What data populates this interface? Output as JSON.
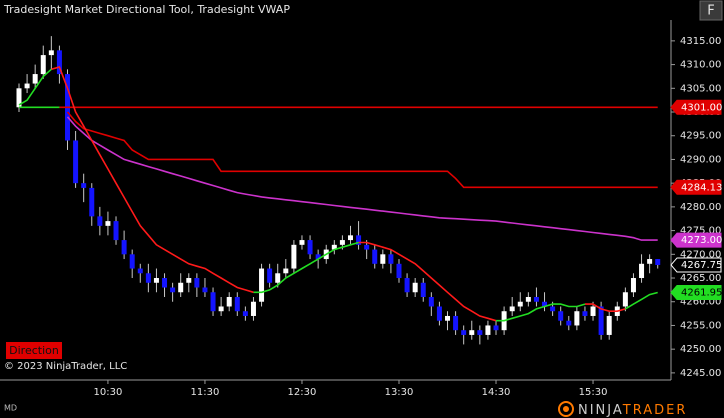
{
  "chart_data": {
    "type": "candlestick",
    "title": "Tradesight Market Directional Tool, Tradesight VWAP",
    "menu_button": "F",
    "direction_button": "Direction",
    "copyright": "© 2023 NinjaTrader, LLC",
    "mode": "MD",
    "logo": [
      "NINJA",
      "TRADER"
    ],
    "up_color": "#ffffff",
    "down_color": "#1414ff",
    "wick_color": "#c8c8c8",
    "x": [
      "09:35",
      "09:40",
      "09:45",
      "09:50",
      "09:55",
      "10:00",
      "10:05",
      "10:10",
      "10:15",
      "10:20",
      "10:25",
      "10:30",
      "10:35",
      "10:40",
      "10:45",
      "10:50",
      "10:55",
      "11:00",
      "11:05",
      "11:10",
      "11:15",
      "11:20",
      "11:25",
      "11:30",
      "11:35",
      "11:40",
      "11:45",
      "11:50",
      "11:55",
      "12:00",
      "12:05",
      "12:10",
      "12:15",
      "12:20",
      "12:25",
      "12:30",
      "12:35",
      "12:40",
      "12:45",
      "12:50",
      "12:55",
      "13:00",
      "13:05",
      "13:10",
      "13:15",
      "13:20",
      "13:25",
      "13:30",
      "13:35",
      "13:40",
      "13:45",
      "13:50",
      "13:55",
      "14:00",
      "14:05",
      "14:10",
      "14:15",
      "14:20",
      "14:25",
      "14:30",
      "14:35",
      "14:40",
      "14:45",
      "14:50",
      "14:55",
      "15:00",
      "15:05",
      "15:10",
      "15:15",
      "15:20",
      "15:25",
      "15:30",
      "15:35",
      "15:40",
      "15:45",
      "15:50",
      "15:55",
      "16:00",
      "16:05",
      "16:10"
    ],
    "open": [
      4301,
      4305,
      4306,
      4308,
      4312,
      4313,
      4308,
      4294,
      4285,
      4284,
      4278,
      4276,
      4277,
      4273,
      4270,
      4267,
      4266,
      4264,
      4265,
      4263,
      4262,
      4264,
      4265,
      4263,
      4262,
      4258,
      4259,
      4261,
      4258,
      4257,
      4260,
      4267,
      4264,
      4266,
      4267,
      4272,
      4273,
      4270,
      4269,
      4271,
      4272,
      4273,
      4274,
      4272,
      4271,
      4268,
      4270,
      4268,
      4265,
      4262,
      4264,
      4261,
      4259,
      4256,
      4257,
      4254,
      4253,
      4254,
      4253,
      4255,
      4254,
      4258,
      4259,
      4260,
      4261,
      4260,
      4259,
      4258,
      4256,
      4255,
      4258,
      4257,
      4259,
      4253,
      4257,
      4259,
      4262,
      4265,
      4268,
      4269
    ],
    "high": [
      4306,
      4308,
      4310,
      4314,
      4316,
      4314,
      4309,
      4296,
      4287,
      4285,
      4280,
      4279,
      4278,
      4275,
      4271,
      4268,
      4268,
      4267,
      4266,
      4264,
      4266,
      4266,
      4266,
      4265,
      4263,
      4261,
      4262,
      4262,
      4259,
      4261,
      4268,
      4268,
      4268,
      4269,
      4273,
      4274,
      4274,
      4271,
      4272,
      4273,
      4274,
      4276,
      4277,
      4273,
      4272,
      4271,
      4271,
      4269,
      4266,
      4265,
      4265,
      4262,
      4260,
      4258,
      4258,
      4255,
      4256,
      4255,
      4256,
      4256,
      4259,
      4261,
      4262,
      4262,
      4263,
      4262,
      4260,
      4259,
      4257,
      4259,
      4259,
      4260,
      4260,
      4258,
      4260,
      4263,
      4266,
      4270,
      4270,
      4269
    ],
    "low": [
      4300,
      4304,
      4305,
      4307,
      4309,
      4306,
      4292,
      4284,
      4281,
      4276,
      4274,
      4274,
      4272,
      4269,
      4265,
      4264,
      4262,
      4262,
      4261,
      4260,
      4261,
      4262,
      4261,
      4261,
      4257,
      4257,
      4258,
      4257,
      4256,
      4256,
      4259,
      4263,
      4263,
      4265,
      4266,
      4271,
      4269,
      4267,
      4268,
      4270,
      4271,
      4272,
      4271,
      4269,
      4267,
      4267,
      4266,
      4264,
      4261,
      4261,
      4260,
      4257,
      4255,
      4254,
      4253,
      4251,
      4252,
      4251,
      4252,
      4253,
      4253,
      4257,
      4258,
      4259,
      4259,
      4258,
      4257,
      4255,
      4254,
      4254,
      4256,
      4256,
      4252,
      4252,
      4256,
      4258,
      4261,
      4264,
      4266,
      4267
    ],
    "close": [
      4305,
      4306,
      4308,
      4312,
      4313,
      4308,
      4294,
      4285,
      4284,
      4278,
      4276,
      4277,
      4273,
      4270,
      4267,
      4266,
      4264,
      4265,
      4263,
      4262,
      4264,
      4265,
      4263,
      4262,
      4258,
      4259,
      4261,
      4258,
      4257,
      4260,
      4267,
      4264,
      4266,
      4267,
      4272,
      4273,
      4270,
      4269,
      4271,
      4272,
      4273,
      4274,
      4272,
      4271,
      4268,
      4270,
      4268,
      4265,
      4262,
      4264,
      4261,
      4259,
      4256,
      4257,
      4254,
      4253,
      4254,
      4253,
      4255,
      4254,
      4258,
      4259,
      4260,
      4261,
      4260,
      4259,
      4258,
      4256,
      4255,
      4258,
      4257,
      4259,
      4253,
      4257,
      4259,
      4262,
      4265,
      4268,
      4269,
      4267.75
    ],
    "series": [
      {
        "color": "#e00000",
        "values": [
          null,
          null,
          null,
          null,
          null,
          4301,
          4301,
          4301,
          4301,
          4301,
          4301,
          4301,
          4301,
          4301,
          4301,
          4301,
          4301,
          4301,
          4301,
          4301,
          4301,
          4301,
          4301,
          4301,
          4301,
          4301,
          4301,
          4301,
          4301,
          4301,
          4301,
          4301,
          4301,
          4301,
          4301,
          4301,
          4301,
          4301,
          4301,
          4301,
          4301,
          4301,
          4301,
          4301,
          4301,
          4301,
          4301,
          4301,
          4301,
          4301,
          4301,
          4301,
          4301,
          4301,
          4301,
          4301,
          4301,
          4301,
          4301,
          4301,
          4301,
          4301,
          4301,
          4301,
          4301,
          4301,
          4301,
          4301,
          4301,
          4301,
          4301,
          4301,
          4301,
          4301,
          4301,
          4301,
          4301,
          4301,
          4301,
          4301
        ]
      },
      {
        "color": "#22dd22",
        "values": [
          4301,
          4301,
          4301,
          4301,
          4301,
          4301,
          null,
          null,
          null,
          null,
          null,
          null,
          null,
          null,
          null,
          null,
          null,
          null,
          null,
          null,
          null,
          null,
          null,
          null,
          null,
          null,
          null,
          null,
          null,
          null,
          null,
          null,
          null,
          null,
          null,
          null,
          null,
          null,
          null,
          null,
          null,
          null,
          null,
          null,
          null,
          null,
          null,
          null,
          null,
          null,
          null,
          null,
          null,
          null,
          null,
          null,
          null,
          null,
          null,
          null,
          null,
          null,
          null,
          null,
          null,
          null,
          null,
          null,
          null,
          null,
          null,
          null,
          null,
          null,
          null,
          null,
          null,
          null,
          null,
          null
        ]
      },
      {
        "color": "#e00000",
        "values": [
          null,
          null,
          null,
          null,
          null,
          null,
          4300,
          4298,
          4296.5,
          4296,
          4295.5,
          4295,
          4294.5,
          4294,
          4292,
          4291,
          4290,
          4290,
          4290,
          4290,
          4290,
          4290,
          4290,
          4290,
          4290,
          4287.5,
          4287.5,
          4287.5,
          4287.5,
          4287.5,
          4287.5,
          4287.5,
          4287.5,
          4287.5,
          4287.5,
          4287.5,
          4287.5,
          4287.5,
          4287.5,
          4287.5,
          4287.5,
          4287.5,
          4287.5,
          4287.5,
          4287.5,
          4287.5,
          4287.5,
          4287.5,
          4287.5,
          4287.5,
          4287.5,
          4287.5,
          4287.5,
          4287.5,
          4286,
          4284.13,
          4284.13,
          4284.13,
          4284.13,
          4284.13,
          4284.13,
          4284.13,
          4284.13,
          4284.13,
          4284.13,
          4284.13,
          4284.13,
          4284.13,
          4284.13,
          4284.13,
          4284.13,
          4284.13,
          4284.13,
          4284.13,
          4284.13,
          4284.13,
          4284.13,
          4284.13,
          4284.13,
          4284.13
        ]
      },
      {
        "color": "#cc33cc",
        "values": [
          null,
          null,
          null,
          null,
          null,
          null,
          4299,
          4297,
          4295.5,
          4294,
          4293,
          4292,
          4291,
          4290,
          4289.5,
          4289,
          4288.5,
          4288,
          4287.5,
          4287,
          4286.5,
          4286,
          4285.5,
          4285,
          4284.5,
          4284,
          4283.5,
          4283,
          4282.7,
          4282.4,
          4282.1,
          4281.9,
          4281.7,
          4281.5,
          4281.3,
          4281.1,
          4280.9,
          4280.7,
          4280.5,
          4280.3,
          4280.1,
          4279.9,
          4279.7,
          4279.5,
          4279.3,
          4279.1,
          4278.9,
          4278.7,
          4278.5,
          4278.3,
          4278.1,
          4277.9,
          4277.7,
          4277.6,
          4277.5,
          4277.4,
          4277.3,
          4277.2,
          4277.1,
          4277,
          4276.8,
          4276.6,
          4276.4,
          4276.2,
          4276,
          4275.8,
          4275.6,
          4275.4,
          4275.2,
          4275,
          4274.8,
          4274.6,
          4274.4,
          4274.2,
          4274,
          4273.8,
          4273.5,
          4273,
          4273,
          4273
        ]
      },
      {
        "color": "#ff1a1a",
        "values": [
          null,
          null,
          null,
          null,
          4309,
          4309.5,
          4305,
          4300,
          4297,
          4294,
          4291,
          4288,
          4285,
          4282,
          4279,
          4276,
          4274,
          4272,
          4271,
          4270,
          4269,
          4268,
          4267.5,
          4267,
          4266,
          4265,
          4264,
          4263,
          4262.5,
          4262,
          null,
          null,
          null,
          null,
          null,
          null,
          null,
          null,
          null,
          null,
          null,
          null,
          4272.5,
          4272.5,
          4272,
          4271.5,
          4271,
          4270,
          4269,
          4268,
          4266.5,
          4265,
          4263.5,
          4262,
          4260.5,
          4259,
          4258,
          4257,
          4256.5,
          4256,
          null,
          null,
          null,
          null,
          null,
          null,
          null,
          null,
          null,
          null,
          4259.5,
          4259.5,
          4258.5,
          4258,
          4258,
          4258.5,
          null,
          null,
          null,
          null
        ]
      },
      {
        "color": "#22dd22",
        "values": [
          4301.5,
          4302.5,
          4305,
          4307.5,
          4309,
          null,
          null,
          null,
          null,
          null,
          null,
          null,
          null,
          null,
          null,
          null,
          null,
          null,
          null,
          null,
          null,
          null,
          null,
          null,
          null,
          null,
          null,
          null,
          null,
          4262,
          4262,
          4262.5,
          4263.5,
          4265,
          4266,
          4267,
          4268,
          4269,
          4270,
          4271,
          4271.5,
          4272,
          4272.5,
          null,
          null,
          null,
          null,
          null,
          null,
          null,
          null,
          null,
          null,
          null,
          null,
          null,
          null,
          null,
          null,
          4256,
          4256,
          4256.5,
          4257,
          4257.5,
          4258.5,
          4259,
          4259.5,
          4259.5,
          4259,
          4259,
          4259.5,
          null,
          null,
          null,
          null,
          4258.5,
          4259.5,
          4260.5,
          4261.5,
          4261.95
        ]
      }
    ],
    "price_markers": [
      {
        "value": 4301,
        "label": "4301.00",
        "color": "#e00000",
        "text_color": "#ffffff"
      },
      {
        "value": 4284.13,
        "label": "4284.13",
        "color": "#e00000",
        "text_color": "#ffffff"
      },
      {
        "value": 4273,
        "label": "4273.00",
        "color": "#cc33cc",
        "text_color": "#ffffff"
      },
      {
        "value": 4267.75,
        "label": "4267.75",
        "color": "#000000",
        "text_color": "#ffffff"
      },
      {
        "value": 4261.95,
        "label": "4261.95",
        "color": "#22dd22",
        "text_color": "#000000"
      }
    ],
    "ylim": [
      4243.5,
      4319.4
    ],
    "yticks": [
      {
        "value": 4315,
        "label": "4315.00"
      },
      {
        "value": 4310,
        "label": "4310.00"
      },
      {
        "value": 4305,
        "label": "4305.00"
      },
      {
        "value": 4300,
        "label": "4300.00"
      },
      {
        "value": 4295,
        "label": "4295.00"
      },
      {
        "value": 4290,
        "label": "4290.00"
      },
      {
        "value": 4285,
        "label": "4285.00"
      },
      {
        "value": 4280,
        "label": "4280.00"
      },
      {
        "value": 4275,
        "label": "4275.00"
      },
      {
        "value": 4270,
        "label": "4270.00"
      },
      {
        "value": 4265,
        "label": "4265.00"
      },
      {
        "value": 4260,
        "label": "4260.00"
      },
      {
        "value": 4255,
        "label": "4255.00"
      },
      {
        "value": 4250,
        "label": "4250.00"
      },
      {
        "value": 4245,
        "label": "4245.00"
      }
    ],
    "xticks": [
      "10:30",
      "11:30",
      "12:30",
      "13:30",
      "14:30",
      "15:30"
    ]
  }
}
